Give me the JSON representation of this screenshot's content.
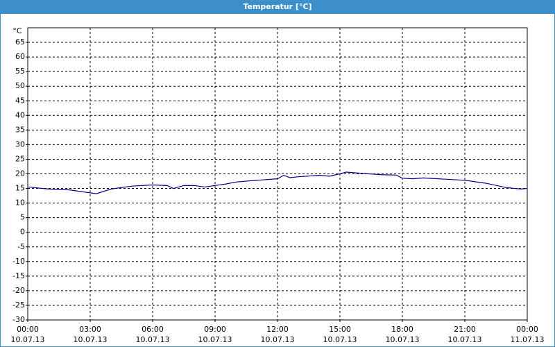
{
  "chart_data": {
    "type": "line",
    "title": "Temperatur [°C]",
    "y_label": "°C",
    "x": [
      0,
      1,
      2,
      3,
      3.3,
      4,
      5,
      6,
      6.7,
      7,
      7.5,
      8,
      8.5,
      9,
      9.5,
      10,
      11,
      12,
      12.3,
      12.6,
      13,
      14,
      14.5,
      15,
      15.3,
      16,
      17,
      17.7,
      18,
      18.5,
      19,
      20,
      20.5,
      21,
      22,
      23,
      23.7,
      24
    ],
    "values": [
      15.5,
      14.8,
      14.5,
      13.5,
      13.2,
      14.8,
      15.8,
      16.2,
      16,
      15,
      16,
      16,
      15.5,
      16,
      16.5,
      17.2,
      17.8,
      18.3,
      19.5,
      18.7,
      19,
      19.5,
      19.2,
      20,
      20.6,
      20.2,
      19.7,
      19.6,
      18.5,
      18.3,
      18.6,
      18.2,
      18,
      17.8,
      16.8,
      15.3,
      14.8,
      15
    ],
    "color": "#00008b",
    "xlim": [
      0,
      24
    ],
    "xticks": [
      {
        "value": 0,
        "label": "00:00 10.07.13"
      },
      {
        "value": 3,
        "label": "03:00 10.07.13"
      },
      {
        "value": 6,
        "label": "06:00 10.07.13"
      },
      {
        "value": 9,
        "label": "09:00 10.07.13"
      },
      {
        "value": 12,
        "label": "12:00 10.07.13"
      },
      {
        "value": 15,
        "label": "15:00 10.07.13"
      },
      {
        "value": 18,
        "label": "18:00 10.07.13"
      },
      {
        "value": 21,
        "label": "21:00 10.07.13"
      },
      {
        "value": 24,
        "label": "00:00 11.07.13"
      }
    ],
    "ylim": [
      -30,
      70
    ],
    "yticks": [
      -30,
      -25,
      -20,
      -15,
      -10,
      -5,
      0,
      5,
      10,
      15,
      20,
      25,
      30,
      35,
      40,
      45,
      50,
      55,
      60,
      65
    ],
    "grid": true
  }
}
